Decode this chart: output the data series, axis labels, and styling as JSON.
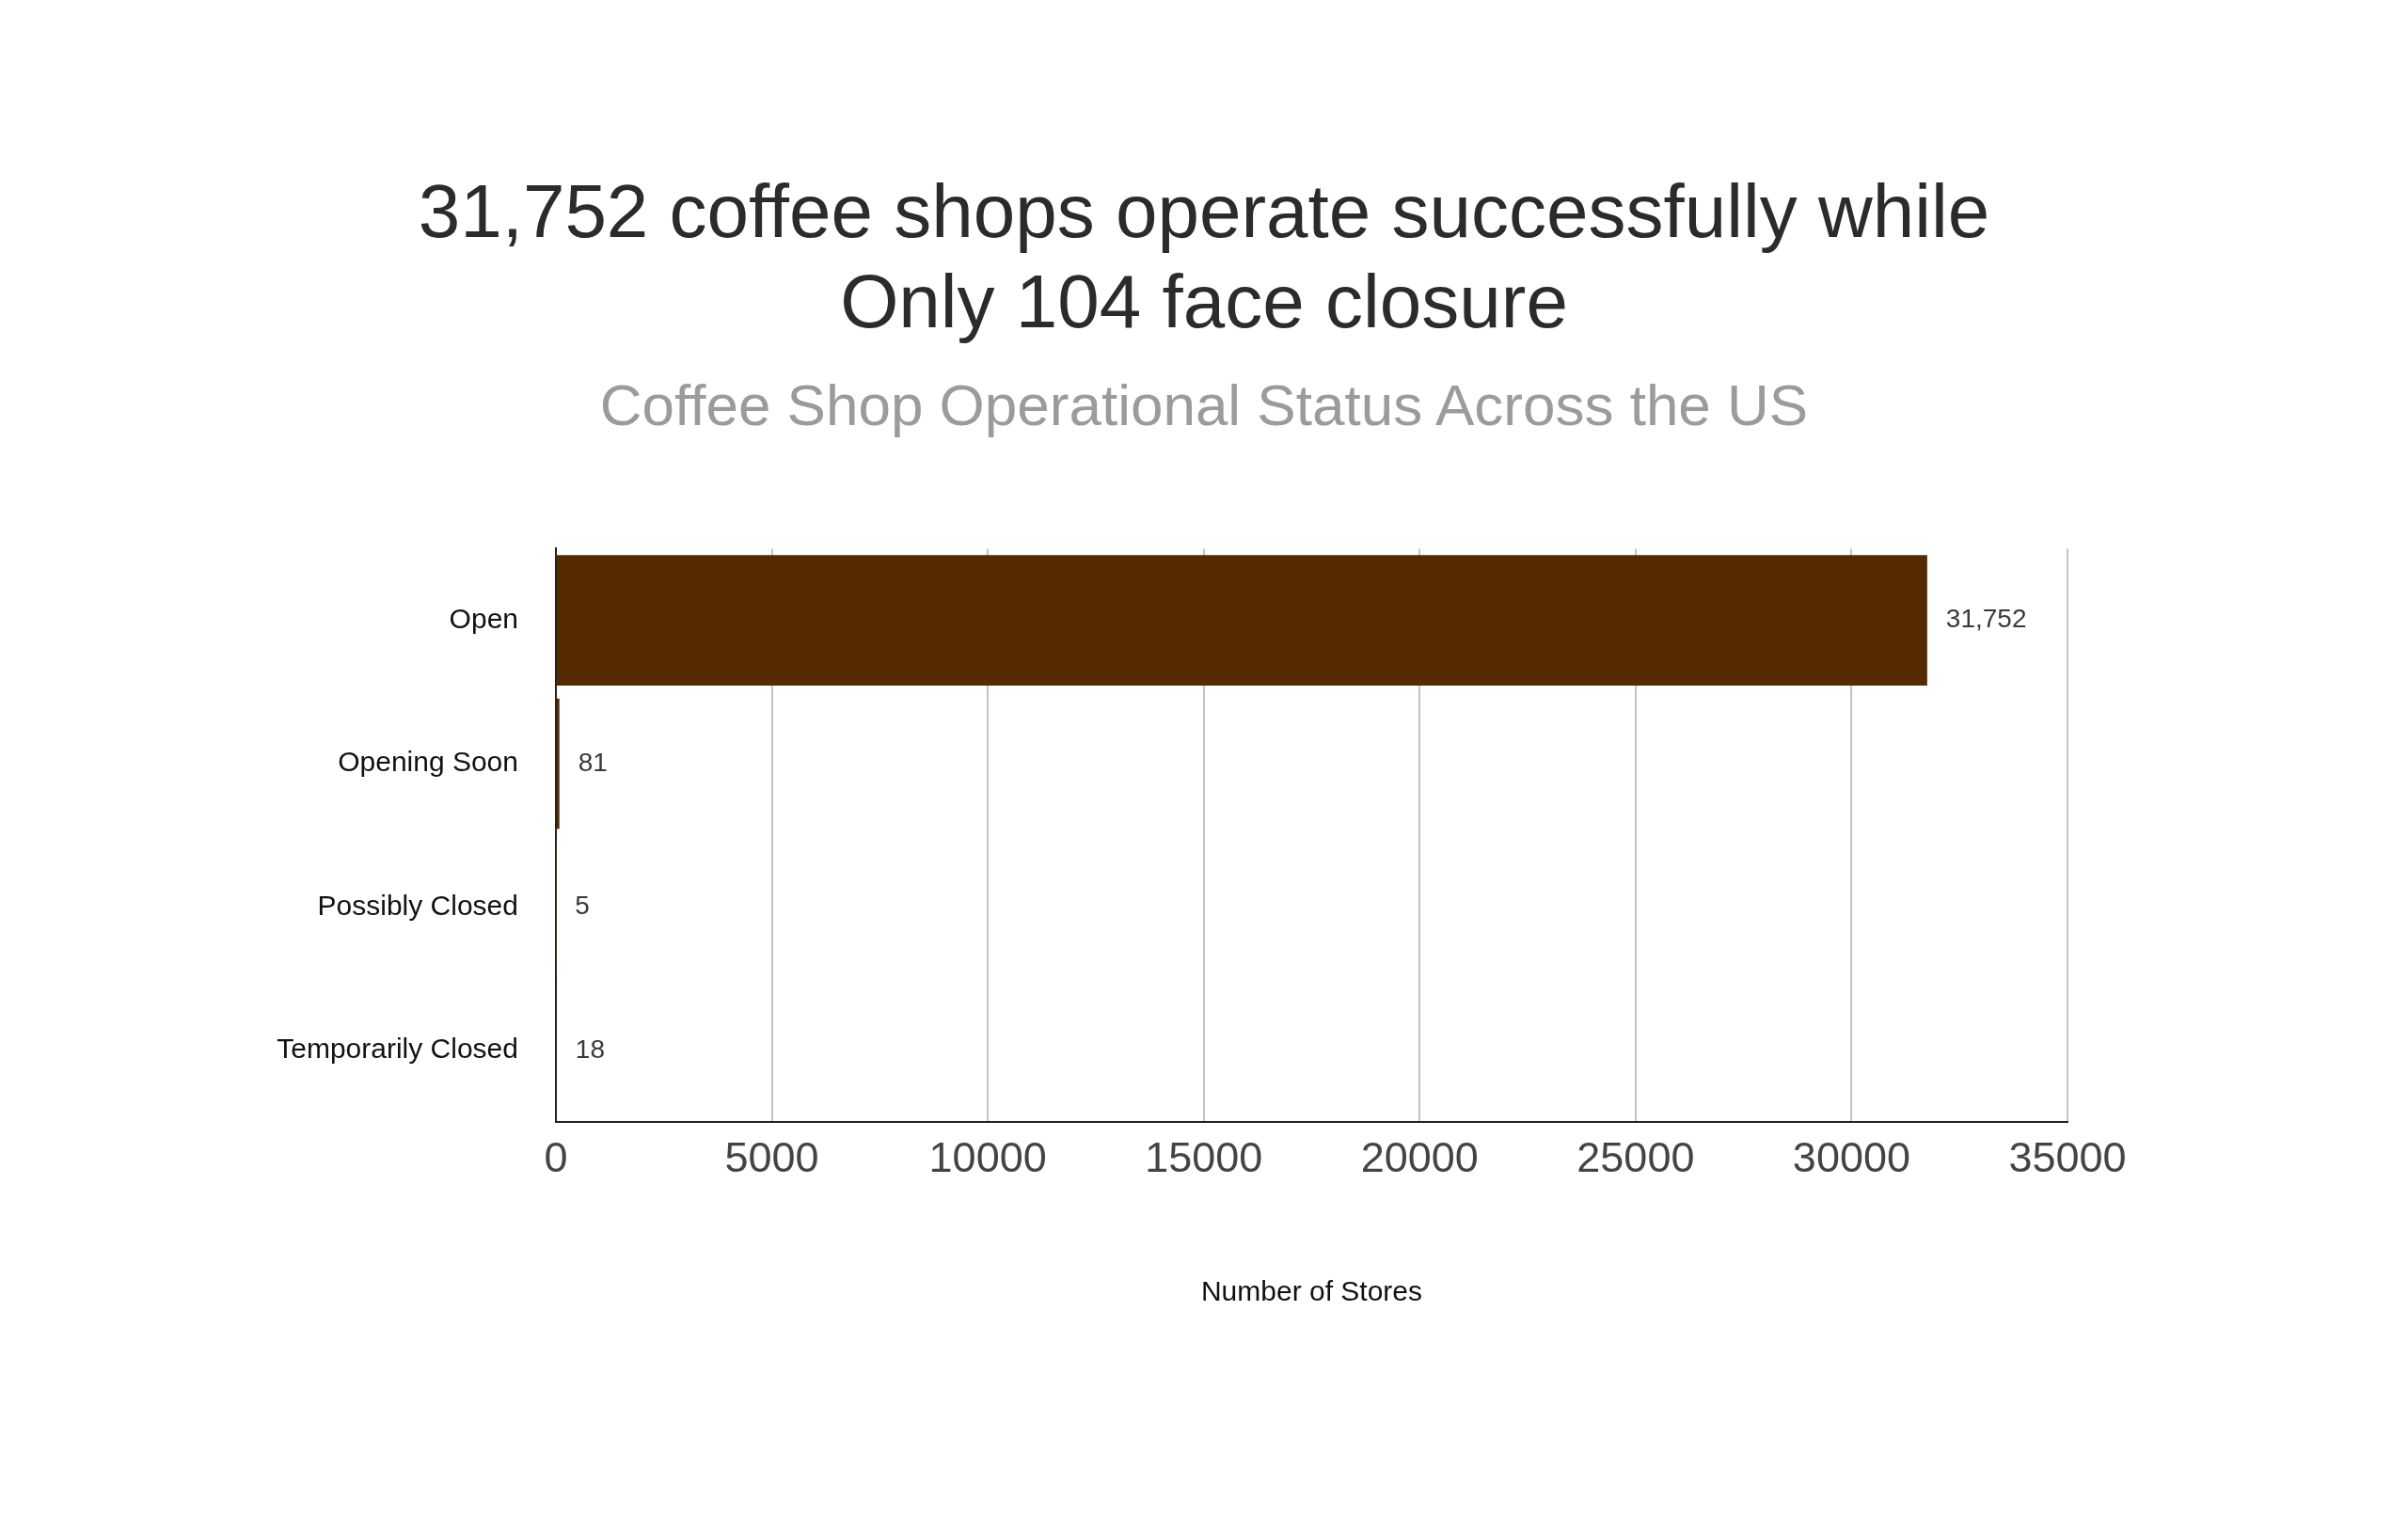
{
  "chart_data": {
    "type": "bar",
    "orientation": "horizontal",
    "title": "31,752 coffee shops operate successfully while\nOnly 104 face closure",
    "subtitle": "Coffee Shop Operational Status Across the US",
    "xlabel": "Number of Stores",
    "categories": [
      "Open",
      "Opening Soon",
      "Possibly Closed",
      "Temporarily Closed"
    ],
    "values": [
      31752,
      81,
      5,
      18
    ],
    "value_labels": [
      "31,752",
      "81",
      "5",
      "18"
    ],
    "color": "#552a00",
    "xlim": [
      0,
      35000
    ],
    "xticks": [
      0,
      5000,
      10000,
      15000,
      20000,
      25000,
      30000,
      35000
    ],
    "grid": "x"
  }
}
